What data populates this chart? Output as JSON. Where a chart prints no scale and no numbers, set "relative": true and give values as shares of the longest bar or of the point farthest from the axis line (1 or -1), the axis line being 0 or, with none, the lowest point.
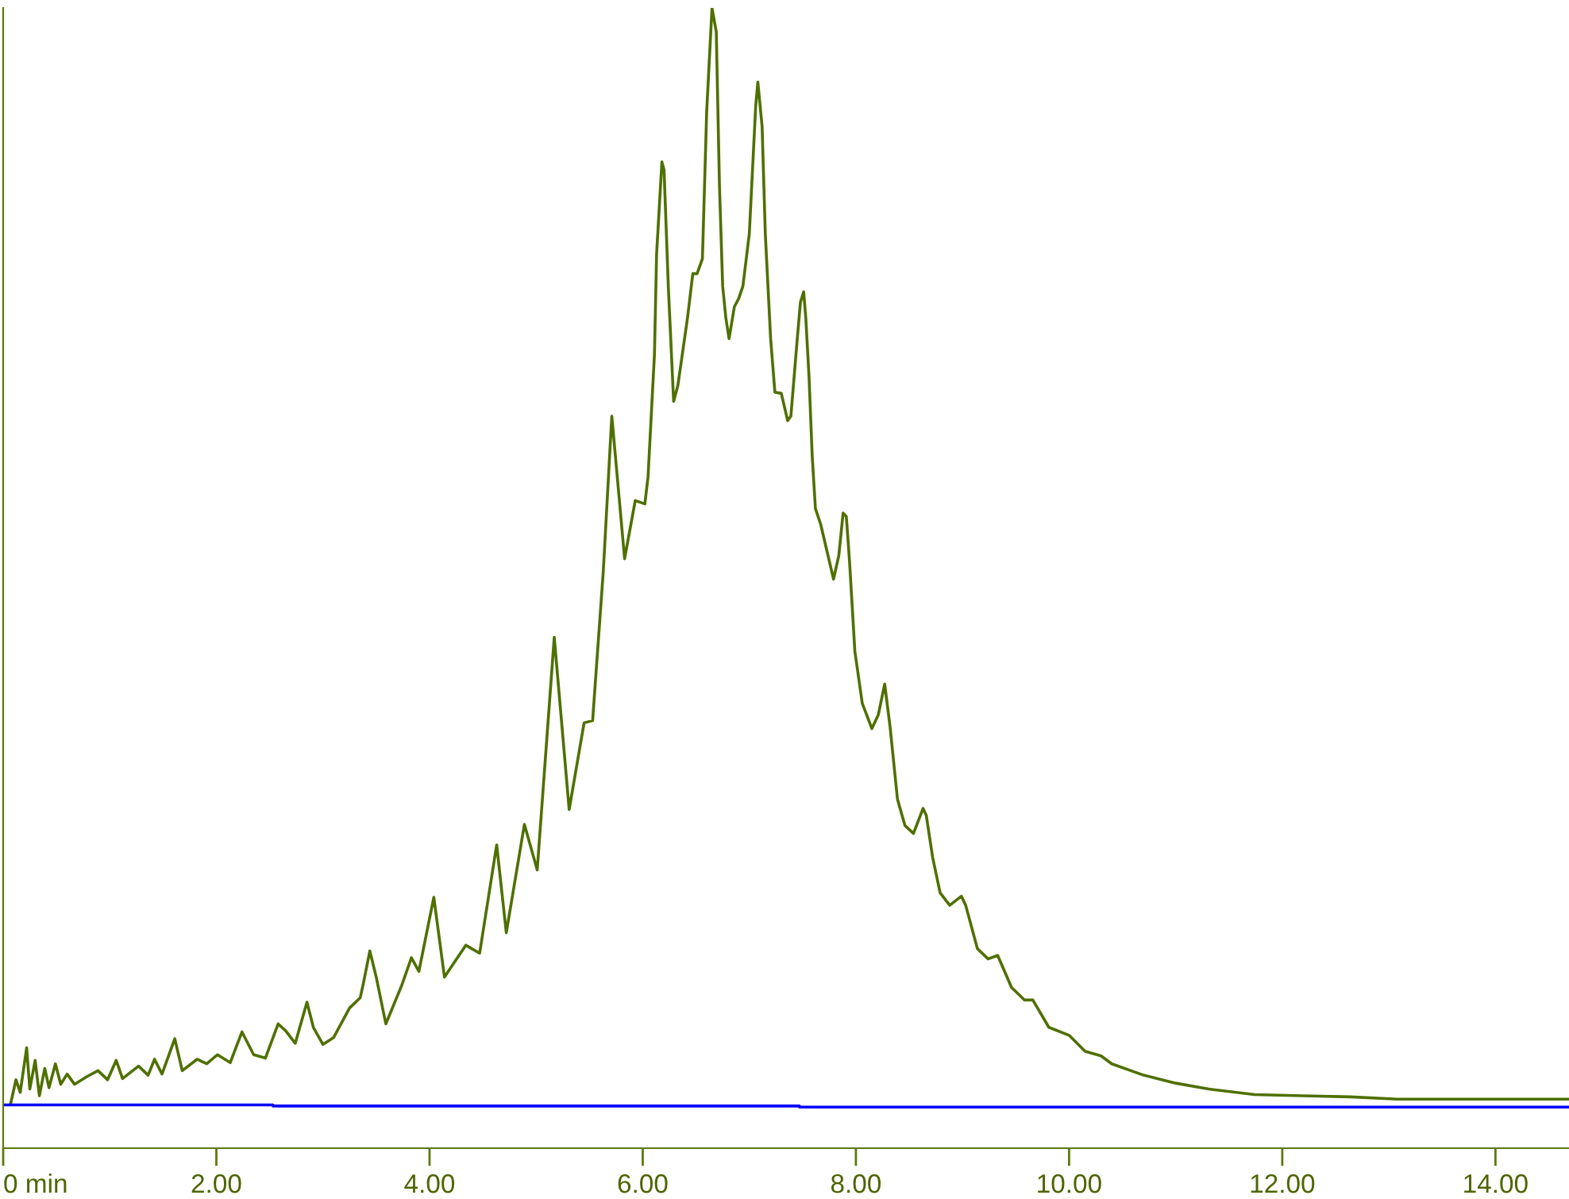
{
  "chart_data": {
    "type": "line",
    "relative": true,
    "xlim": [
      0,
      14.69
    ],
    "xticks": [
      {
        "value": 0,
        "label": "0 min"
      },
      {
        "value": 2,
        "label": "2.00"
      },
      {
        "value": 4,
        "label": "4.00"
      },
      {
        "value": 6,
        "label": "6.00"
      },
      {
        "value": 8,
        "label": "8.00"
      },
      {
        "value": 10,
        "label": "10.00"
      },
      {
        "value": 12,
        "label": "12.00"
      },
      {
        "value": 14,
        "label": "14.00"
      }
    ],
    "grid": false,
    "marker": "none",
    "line_style": "solid",
    "series": [
      {
        "color": "#4f7000",
        "x": [
          0.07,
          0.12,
          0.16,
          0.22,
          0.25,
          0.3,
          0.34,
          0.39,
          0.43,
          0.49,
          0.54,
          0.6,
          0.67,
          0.79,
          0.89,
          0.98,
          1.06,
          1.12,
          1.27,
          1.36,
          1.42,
          1.49,
          1.61,
          1.68,
          1.82,
          1.91,
          2.01,
          2.13,
          2.24,
          2.35,
          2.46,
          2.58,
          2.65,
          2.74,
          2.85,
          2.91,
          3.0,
          3.1,
          3.25,
          3.35,
          3.38,
          3.44,
          3.5,
          3.59,
          3.74,
          3.83,
          3.9,
          4.04,
          4.14,
          4.34,
          4.47,
          4.63,
          4.72,
          4.89,
          5.01,
          5.17,
          5.31,
          5.45,
          5.53,
          5.63,
          5.71,
          5.83,
          5.93,
          6.02,
          6.05,
          6.11,
          6.13,
          6.18,
          6.2,
          6.24,
          6.29,
          6.33,
          6.42,
          6.47,
          6.51,
          6.56,
          6.6,
          6.65,
          6.69,
          6.72,
          6.75,
          6.78,
          6.81,
          6.86,
          6.9,
          6.94,
          7.0,
          7.06,
          7.08,
          7.12,
          7.15,
          7.2,
          7.24,
          7.3,
          7.36,
          7.39,
          7.45,
          7.48,
          7.51,
          7.53,
          7.56,
          7.59,
          7.62,
          7.67,
          7.79,
          7.84,
          7.88,
          7.91,
          7.94,
          7.99,
          8.06,
          8.15,
          8.21,
          8.27,
          8.32,
          8.39,
          8.46,
          8.54,
          8.63,
          8.66,
          8.72,
          8.79,
          8.88,
          8.99,
          9.03,
          9.14,
          9.24,
          9.33,
          9.46,
          9.58,
          9.66,
          9.81,
          10.0,
          10.15,
          10.3,
          10.4,
          10.7,
          11.0,
          11.3,
          11.74,
          12.19,
          12.64,
          13.08,
          14.69
        ],
        "values": [
          0.039,
          0.06,
          0.049,
          0.088,
          0.052,
          0.077,
          0.046,
          0.07,
          0.053,
          0.074,
          0.056,
          0.065,
          0.056,
          0.063,
          0.068,
          0.06,
          0.077,
          0.061,
          0.072,
          0.064,
          0.078,
          0.065,
          0.096,
          0.068,
          0.078,
          0.074,
          0.082,
          0.075,
          0.102,
          0.082,
          0.079,
          0.109,
          0.103,
          0.092,
          0.128,
          0.106,
          0.091,
          0.097,
          0.123,
          0.132,
          0.145,
          0.173,
          0.15,
          0.109,
          0.143,
          0.167,
          0.155,
          0.22,
          0.15,
          0.178,
          0.171,
          0.266,
          0.189,
          0.284,
          0.244,
          0.448,
          0.297,
          0.373,
          0.375,
          0.506,
          0.642,
          0.517,
          0.568,
          0.565,
          0.589,
          0.696,
          0.784,
          0.865,
          0.858,
          0.756,
          0.655,
          0.669,
          0.728,
          0.767,
          0.767,
          0.78,
          0.909,
          1,
          0.979,
          0.844,
          0.756,
          0.728,
          0.71,
          0.738,
          0.745,
          0.756,
          0.802,
          0.914,
          0.935,
          0.896,
          0.802,
          0.71,
          0.663,
          0.662,
          0.638,
          0.642,
          0.71,
          0.742,
          0.751,
          0.728,
          0.677,
          0.607,
          0.561,
          0.547,
          0.499,
          0.52,
          0.557,
          0.554,
          0.515,
          0.436,
          0.39,
          0.368,
          0.38,
          0.407,
          0.37,
          0.306,
          0.283,
          0.276,
          0.298,
          0.292,
          0.255,
          0.224,
          0.213,
          0.221,
          0.213,
          0.175,
          0.166,
          0.169,
          0.141,
          0.13,
          0.13,
          0.106,
          0.099,
          0.085,
          0.081,
          0.074,
          0.064,
          0.057,
          0.052,
          0.047,
          0.046,
          0.045,
          0.043,
          0.043
        ]
      },
      {
        "color": "#0000ff",
        "x": [
          0,
          2.53,
          2.53,
          7.47,
          7.47,
          14.69
        ],
        "values": [
          0.038,
          0.038,
          0.037,
          0.037,
          0.036,
          0.036
        ]
      }
    ]
  }
}
